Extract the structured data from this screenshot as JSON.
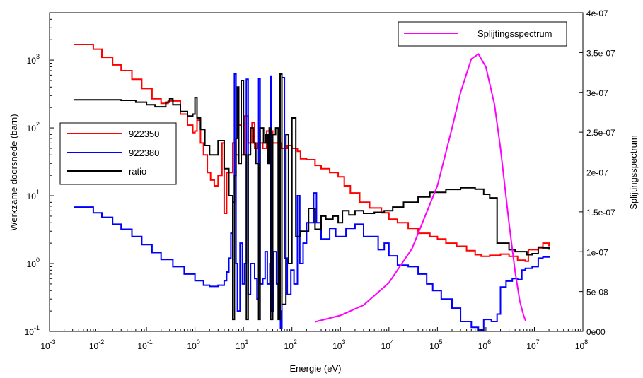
{
  "chart_data": {
    "type": "line",
    "xlabel": "Energie (eV)",
    "ylabel_left": "Werkzame doorsnede (barn)",
    "ylabel_right": "Splijtingsspectrum",
    "x_scale": "log",
    "y_left_scale": "log",
    "xlim": [
      0.001,
      100000000
    ],
    "ylim_left": [
      0.1,
      5000
    ],
    "ylim_right": [
      0,
      4e-07
    ],
    "grid": false,
    "x_ticks": [
      {
        "base": "10",
        "exp": "-3"
      },
      {
        "base": "10",
        "exp": "-2"
      },
      {
        "base": "10",
        "exp": "-1"
      },
      {
        "base": "10",
        "exp": "0"
      },
      {
        "base": "10",
        "exp": "1"
      },
      {
        "base": "10",
        "exp": "2"
      },
      {
        "base": "10",
        "exp": "3"
      },
      {
        "base": "10",
        "exp": "4"
      },
      {
        "base": "10",
        "exp": "5"
      },
      {
        "base": "10",
        "exp": "6"
      },
      {
        "base": "10",
        "exp": "7"
      },
      {
        "base": "10",
        "exp": "8"
      }
    ],
    "y_left_ticks": [
      {
        "base": "10",
        "exp": "-1",
        "value": 0.1
      },
      {
        "base": "10",
        "exp": "0",
        "value": 1
      },
      {
        "base": "10",
        "exp": "1",
        "value": 10
      },
      {
        "base": "10",
        "exp": "2",
        "value": 100
      },
      {
        "base": "10",
        "exp": "3",
        "value": 1000
      }
    ],
    "y_right_ticks": [
      {
        "label": "0e00",
        "value": 0
      },
      {
        "label": "5e-08",
        "value": 5e-08
      },
      {
        "label": "1e-07",
        "value": 1e-07
      },
      {
        "label": "1.5e-07",
        "value": 1.5e-07
      },
      {
        "label": "2e-07",
        "value": 2e-07
      },
      {
        "label": "2.5e-07",
        "value": 2.5e-07
      },
      {
        "label": "3e-07",
        "value": 3e-07
      },
      {
        "label": "3.5e-07",
        "value": 3.5e-07
      },
      {
        "label": "4e-07",
        "value": 4e-07
      }
    ],
    "legend_left": {
      "position": "center-left",
      "entries": [
        "922350",
        "922380",
        "ratio"
      ]
    },
    "legend_right": {
      "position": "top-right",
      "entries": [
        "Splijtingsspectrum"
      ]
    },
    "series": [
      {
        "name": "922350",
        "color": "#ff0000",
        "axis": "left",
        "step": true,
        "points": [
          [
            0.0032,
            1700
          ],
          [
            0.006,
            1700
          ],
          [
            0.008,
            1450
          ],
          [
            0.012,
            1100
          ],
          [
            0.02,
            850
          ],
          [
            0.03,
            700
          ],
          [
            0.05,
            520
          ],
          [
            0.08,
            380
          ],
          [
            0.13,
            270
          ],
          [
            0.2,
            230
          ],
          [
            0.28,
            250
          ],
          [
            0.35,
            250
          ],
          [
            0.5,
            160
          ],
          [
            0.7,
            110
          ],
          [
            0.9,
            85
          ],
          [
            1.0,
            90
          ],
          [
            1.1,
            130
          ],
          [
            1.3,
            60
          ],
          [
            1.5,
            40
          ],
          [
            1.8,
            22
          ],
          [
            2.1,
            17
          ],
          [
            2.5,
            14
          ],
          [
            3.0,
            20
          ],
          [
            3.6,
            60
          ],
          [
            4.0,
            5.5
          ],
          [
            4.5,
            22
          ],
          [
            6.0,
            60
          ],
          [
            7.0,
            40
          ],
          [
            8.0,
            110
          ],
          [
            9.0,
            40
          ],
          [
            10.5,
            150
          ],
          [
            12.5,
            60
          ],
          [
            15,
            120
          ],
          [
            17,
            50
          ],
          [
            20,
            60
          ],
          [
            25,
            50
          ],
          [
            30,
            90
          ],
          [
            40,
            60
          ],
          [
            50,
            60
          ],
          [
            60,
            50
          ],
          [
            80,
            55
          ],
          [
            100,
            50
          ],
          [
            130,
            45
          ],
          [
            150,
            35
          ],
          [
            200,
            34
          ],
          [
            300,
            28
          ],
          [
            400,
            25
          ],
          [
            600,
            22
          ],
          [
            900,
            19
          ],
          [
            1200,
            14
          ],
          [
            1600,
            11
          ],
          [
            2500,
            8
          ],
          [
            4000,
            6.6
          ],
          [
            7000,
            5.6
          ],
          [
            10000,
            4.5
          ],
          [
            15000,
            4
          ],
          [
            25000,
            3.3
          ],
          [
            40000,
            2.8
          ],
          [
            70000,
            2.5
          ],
          [
            100000,
            2.3
          ],
          [
            150000,
            2.0
          ],
          [
            250000,
            1.8
          ],
          [
            400000,
            1.55
          ],
          [
            600000,
            1.35
          ],
          [
            800000,
            1.28
          ],
          [
            1200000,
            1.32
          ],
          [
            2000000,
            1.38
          ],
          [
            3000000,
            1.28
          ],
          [
            4500000,
            1.12
          ],
          [
            6500000,
            1.08
          ],
          [
            7500000,
            1.6
          ],
          [
            12000000,
            1.7
          ],
          [
            15000000,
            2.0
          ],
          [
            20000000,
            1.8
          ]
        ]
      },
      {
        "name": "922380",
        "color": "#0000ff",
        "axis": "left",
        "step": true,
        "points": [
          [
            0.0032,
            6.8
          ],
          [
            0.006,
            6.8
          ],
          [
            0.008,
            5.6
          ],
          [
            0.012,
            4.8
          ],
          [
            0.02,
            3.8
          ],
          [
            0.03,
            3.2
          ],
          [
            0.05,
            2.5
          ],
          [
            0.08,
            1.9
          ],
          [
            0.13,
            1.45
          ],
          [
            0.2,
            1.15
          ],
          [
            0.35,
            0.9
          ],
          [
            0.6,
            0.7
          ],
          [
            1.0,
            0.56
          ],
          [
            1.5,
            0.48
          ],
          [
            2.0,
            0.46
          ],
          [
            3.0,
            0.48
          ],
          [
            4.0,
            0.56
          ],
          [
            4.5,
            0.75
          ],
          [
            5.0,
            1.2
          ],
          [
            5.5,
            2.8
          ],
          [
            6.0,
            8
          ],
          [
            6.5,
            620
          ],
          [
            7.0,
            1.0
          ],
          [
            7.5,
            0.2
          ],
          [
            8.5,
            2
          ],
          [
            9.5,
            0.5
          ],
          [
            10.5,
            1.0
          ],
          [
            11.5,
            520
          ],
          [
            12.5,
            0.35
          ],
          [
            14,
            1.0
          ],
          [
            17,
            0.6
          ],
          [
            19,
            0.3
          ],
          [
            20.5,
            530
          ],
          [
            22,
            0.5
          ],
          [
            25,
            0.6
          ],
          [
            28,
            1.5
          ],
          [
            31,
            0.5
          ],
          [
            35,
            1.0
          ],
          [
            36.5,
            580
          ],
          [
            38,
            0.2
          ],
          [
            42,
            1.5
          ],
          [
            48,
            0.5
          ],
          [
            54,
            0.2
          ],
          [
            58,
            0.11
          ],
          [
            62,
            550
          ],
          [
            70,
            1.2
          ],
          [
            80,
            0.35
          ],
          [
            95,
            0.8
          ],
          [
            110,
            0.5
          ],
          [
            130,
            10
          ],
          [
            145,
            1.0
          ],
          [
            170,
            2.0
          ],
          [
            200,
            4.0
          ],
          [
            280,
            11
          ],
          [
            320,
            4
          ],
          [
            400,
            2.3
          ],
          [
            600,
            3.3
          ],
          [
            800,
            2.5
          ],
          [
            1100,
            2.5
          ],
          [
            1300,
            3.3
          ],
          [
            2000,
            3.8
          ],
          [
            3000,
            2.5
          ],
          [
            4000,
            2.5
          ],
          [
            6000,
            1.6
          ],
          [
            8000,
            2.0
          ],
          [
            10000,
            1.3
          ],
          [
            15000,
            0.95
          ],
          [
            25000,
            0.9
          ],
          [
            40000,
            0.7
          ],
          [
            60000,
            0.5
          ],
          [
            80000,
            0.4
          ],
          [
            120000,
            0.3
          ],
          [
            200000,
            0.22
          ],
          [
            300000,
            0.14
          ],
          [
            500000,
            0.115
          ],
          [
            700000,
            0.105
          ],
          [
            900000,
            0.15
          ],
          [
            1300000,
            0.14
          ],
          [
            1700000,
            0.18
          ],
          [
            2000000,
            0.45
          ],
          [
            2600000,
            0.55
          ],
          [
            3500000,
            0.6
          ],
          [
            4500000,
            0.58
          ],
          [
            5500000,
            0.8
          ],
          [
            6500000,
            0.85
          ],
          [
            9000000,
            0.9
          ],
          [
            12000000,
            1.2
          ],
          [
            15000000,
            1.25
          ],
          [
            20000000,
            1.3
          ]
        ]
      },
      {
        "name": "ratio",
        "color": "#000000",
        "axis": "left",
        "step": true,
        "points": [
          [
            0.0032,
            260
          ],
          [
            0.03,
            255
          ],
          [
            0.06,
            240
          ],
          [
            0.1,
            220
          ],
          [
            0.15,
            205
          ],
          [
            0.2,
            205
          ],
          [
            0.25,
            240
          ],
          [
            0.3,
            270
          ],
          [
            0.35,
            220
          ],
          [
            0.5,
            175
          ],
          [
            0.7,
            150
          ],
          [
            0.9,
            160
          ],
          [
            1.0,
            280
          ],
          [
            1.1,
            140
          ],
          [
            1.3,
            95
          ],
          [
            1.6,
            55
          ],
          [
            2.0,
            40
          ],
          [
            2.5,
            40
          ],
          [
            3.0,
            65
          ],
          [
            4.0,
            25
          ],
          [
            5.0,
            10
          ],
          [
            6.0,
            0.15
          ],
          [
            6.5,
            20
          ],
          [
            7.0,
            70
          ],
          [
            7.5,
            400
          ],
          [
            8.0,
            30
          ],
          [
            9.0,
            500
          ],
          [
            10,
            40
          ],
          [
            11.5,
            0.15
          ],
          [
            12.5,
            40
          ],
          [
            14,
            100
          ],
          [
            16,
            60
          ],
          [
            18,
            30
          ],
          [
            20.5,
            0.15
          ],
          [
            22,
            100
          ],
          [
            26,
            60
          ],
          [
            29,
            80
          ],
          [
            32,
            30
          ],
          [
            34,
            100
          ],
          [
            36.5,
            0.15
          ],
          [
            40,
            80
          ],
          [
            46,
            100
          ],
          [
            52,
            0.15
          ],
          [
            57,
            620
          ],
          [
            62,
            0.25
          ],
          [
            75,
            80
          ],
          [
            85,
            1.0
          ],
          [
            100,
            140
          ],
          [
            120,
            2.5
          ],
          [
            150,
            3.0
          ],
          [
            220,
            6.5
          ],
          [
            300,
            3.2
          ],
          [
            400,
            5.0
          ],
          [
            500,
            4.5
          ],
          [
            700,
            5.0
          ],
          [
            900,
            4.0
          ],
          [
            1100,
            6.0
          ],
          [
            1500,
            5.2
          ],
          [
            2000,
            6.0
          ],
          [
            3000,
            5.5
          ],
          [
            5000,
            5.7
          ],
          [
            8000,
            6.0
          ],
          [
            12000,
            6.8
          ],
          [
            20000,
            8.0
          ],
          [
            40000,
            9.6
          ],
          [
            70000,
            11.2
          ],
          [
            150000,
            12.4
          ],
          [
            300000,
            13.1
          ],
          [
            600000,
            12.5
          ],
          [
            900000,
            10.5
          ],
          [
            1200000,
            9.3
          ],
          [
            1700000,
            2.0
          ],
          [
            3000000,
            1.6
          ],
          [
            4000000,
            1.5
          ],
          [
            5500000,
            1.5
          ],
          [
            7000000,
            1.35
          ],
          [
            9000000,
            1.4
          ],
          [
            12000000,
            1.75
          ],
          [
            15000000,
            1.7
          ],
          [
            20000000,
            1.6
          ]
        ]
      },
      {
        "name": "Splijtingsspectrum",
        "color": "#ff00ff",
        "axis": "right",
        "step": false,
        "points": [
          [
            300,
            1.2e-08
          ],
          [
            1000,
            2e-08
          ],
          [
            3000,
            3.3e-08
          ],
          [
            10000,
            6.1e-08
          ],
          [
            30000,
            1.04e-07
          ],
          [
            100000,
            1.83e-07
          ],
          [
            200000,
            2.55e-07
          ],
          [
            300000,
            3e-07
          ],
          [
            500000,
            3.42e-07
          ],
          [
            700000,
            3.48e-07
          ],
          [
            1000000,
            3.32e-07
          ],
          [
            1500000,
            2.85e-07
          ],
          [
            2000000,
            2.3e-07
          ],
          [
            3000000,
            1.36e-07
          ],
          [
            4000000,
            7.5e-08
          ],
          [
            5000000,
            3.8e-08
          ],
          [
            6000000,
            2e-08
          ],
          [
            6600000,
            1.3e-08
          ]
        ]
      }
    ]
  }
}
